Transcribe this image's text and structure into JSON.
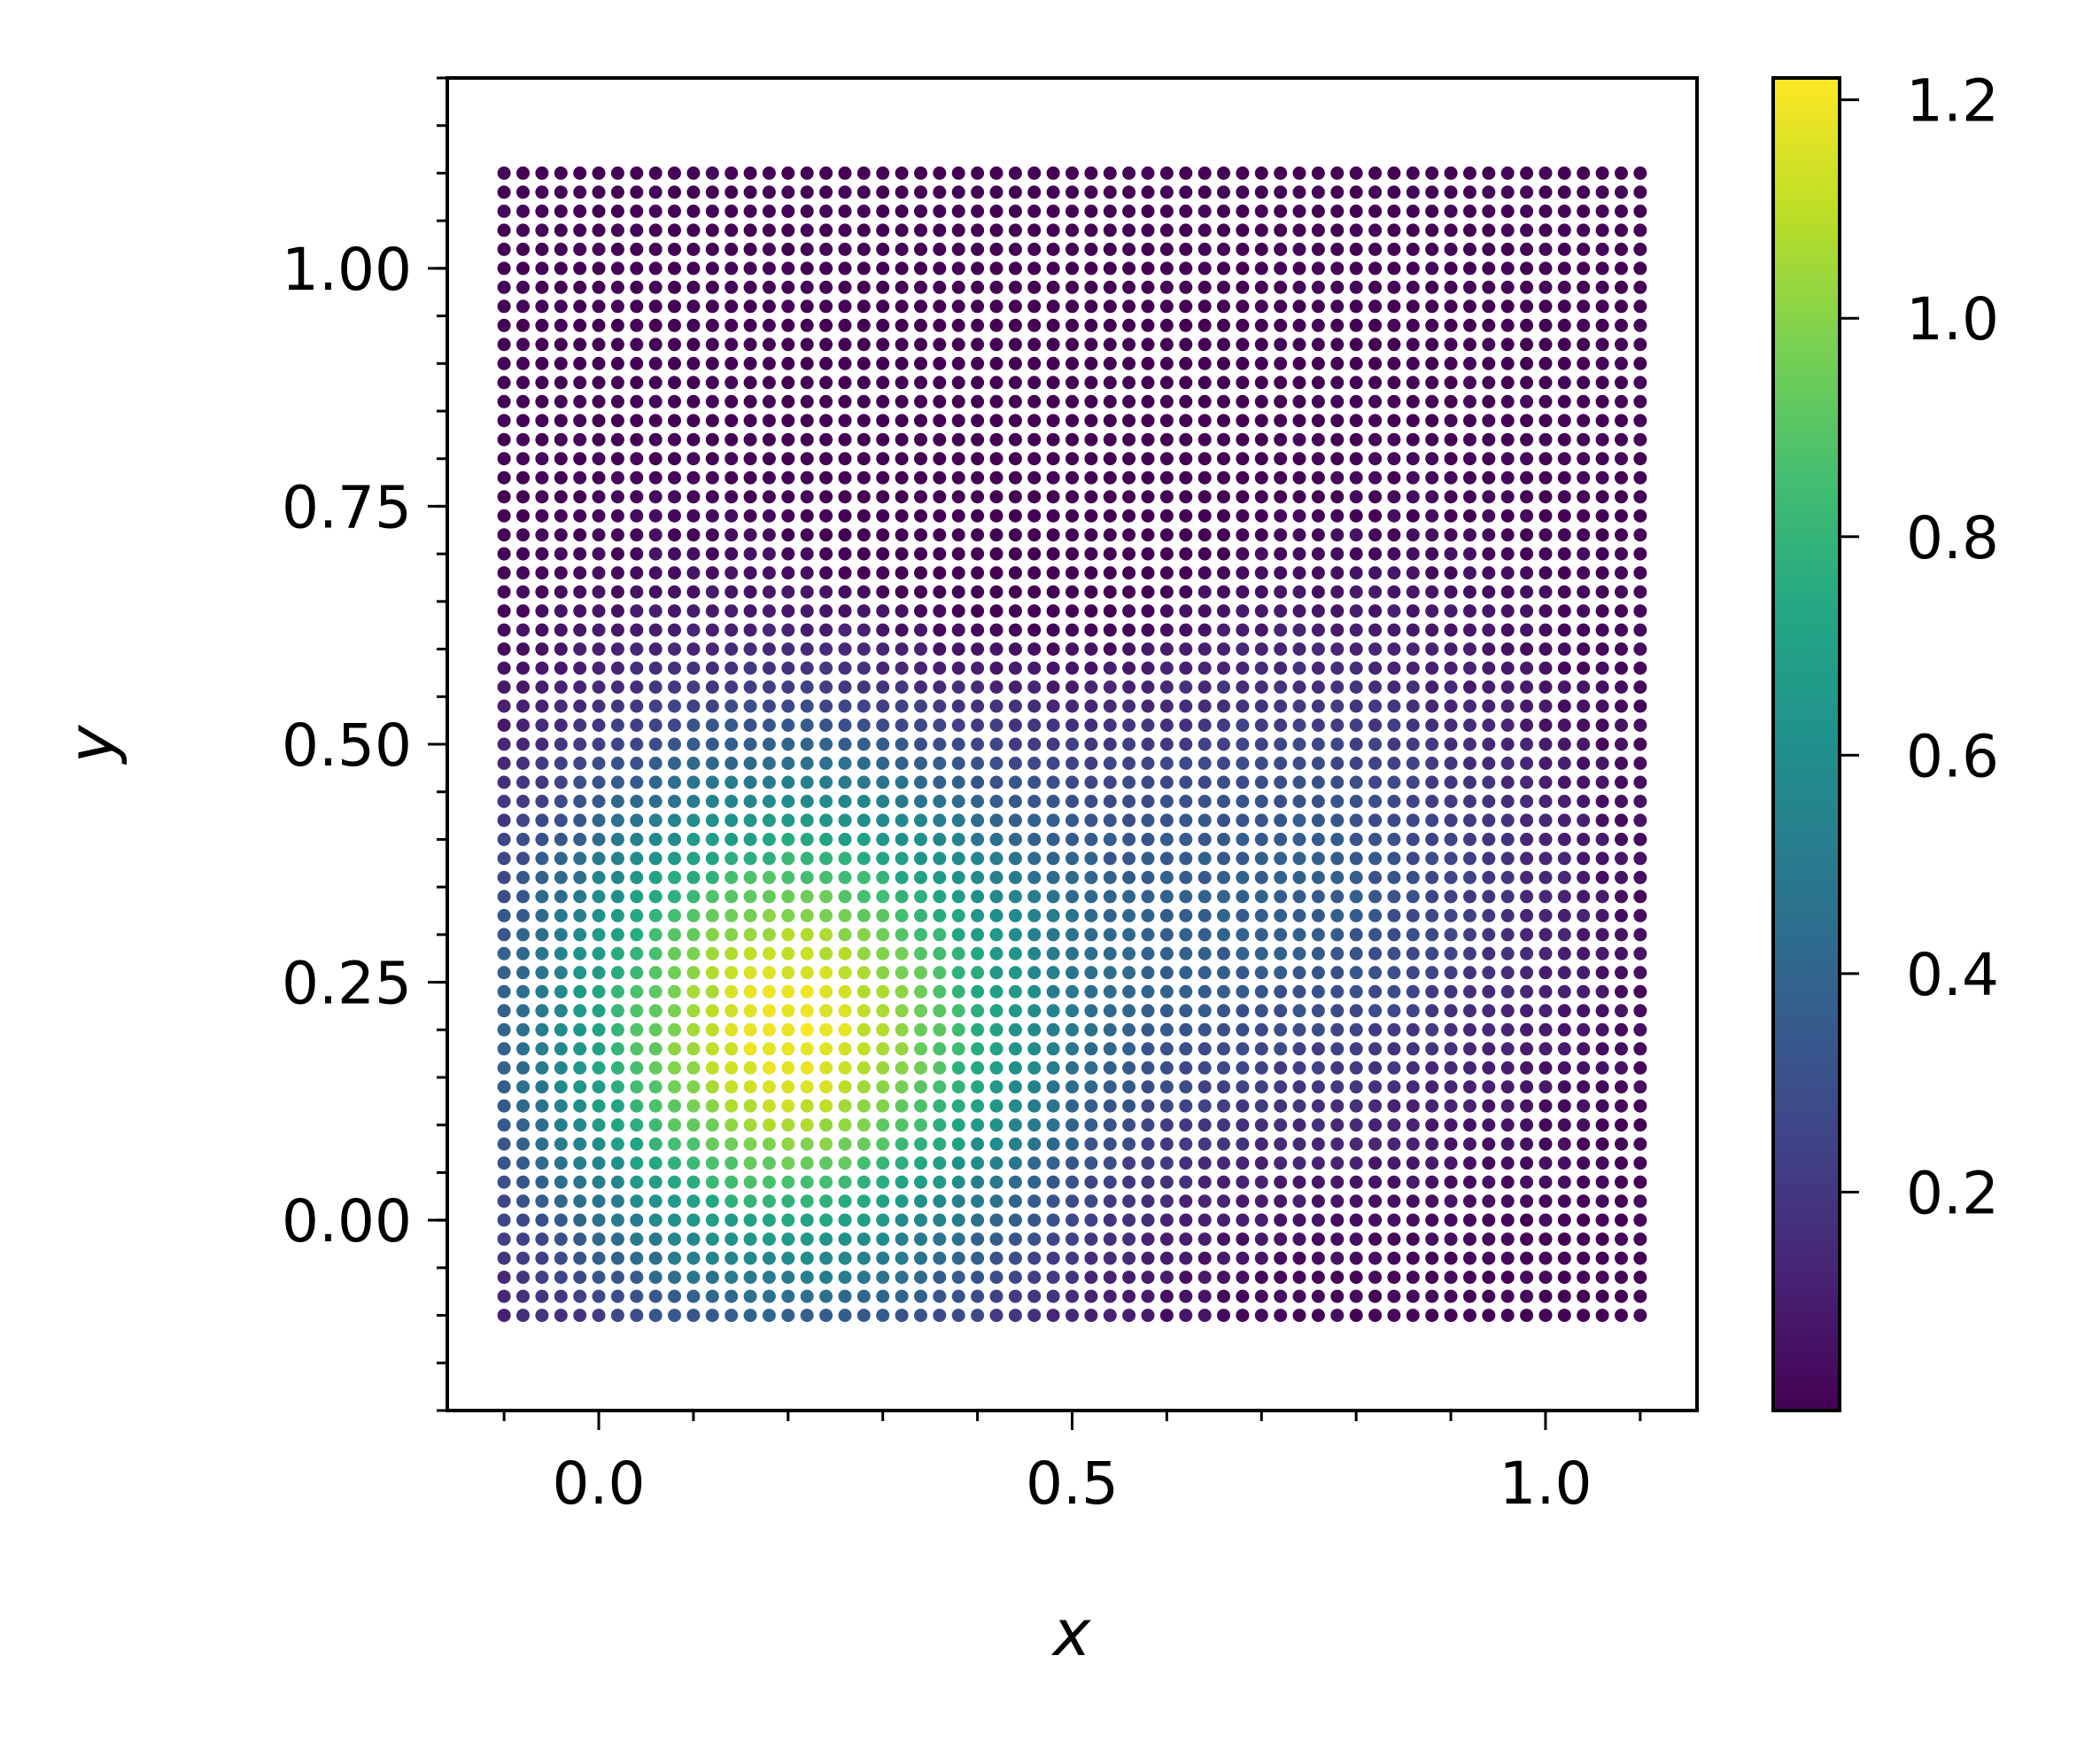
{
  "chart_data": {
    "type": "scatter",
    "title": "",
    "xlabel": "x",
    "ylabel": "y",
    "xlim": [
      -0.16,
      1.16
    ],
    "ylim": [
      -0.2,
      1.2
    ],
    "grid": false,
    "legend": "none",
    "x_ticks": [
      0.0,
      0.5,
      1.0
    ],
    "x_tick_labels": [
      "0.0",
      "0.5",
      "1.0"
    ],
    "x_minor_step": 0.1,
    "y_ticks": [
      0.0,
      0.25,
      0.5,
      0.75,
      1.0
    ],
    "y_tick_labels": [
      "0.00",
      "0.25",
      "0.50",
      "0.75",
      "1.00"
    ],
    "y_minor_step": 0.05,
    "points": {
      "grid": "regular",
      "x_range": [
        -0.1,
        1.1
      ],
      "y_range": [
        -0.1,
        1.1
      ],
      "count_per_axis": 61,
      "value_field": "sum of gaussian bumps plus small noise",
      "bumps": [
        {
          "cx": 0.2,
          "cy": 0.2,
          "amplitude": 1.2,
          "sigma": 0.2
        },
        {
          "cx": 0.75,
          "cy": 0.35,
          "amplitude": 0.35,
          "sigma": 0.18
        },
        {
          "cx": 0.45,
          "cy": 0.78,
          "amplitude": -0.2,
          "sigma": 0.12
        }
      ],
      "value_range": [
        0.0,
        1.22
      ]
    },
    "colorbar": {
      "colormap": "viridis",
      "vmin": 0.0,
      "vmax": 1.22,
      "ticks": [
        0.2,
        0.4,
        0.6,
        0.8,
        1.0,
        1.2
      ],
      "tick_labels": [
        "0.2",
        "0.4",
        "0.6",
        "0.8",
        "1.0",
        "1.2"
      ]
    }
  }
}
